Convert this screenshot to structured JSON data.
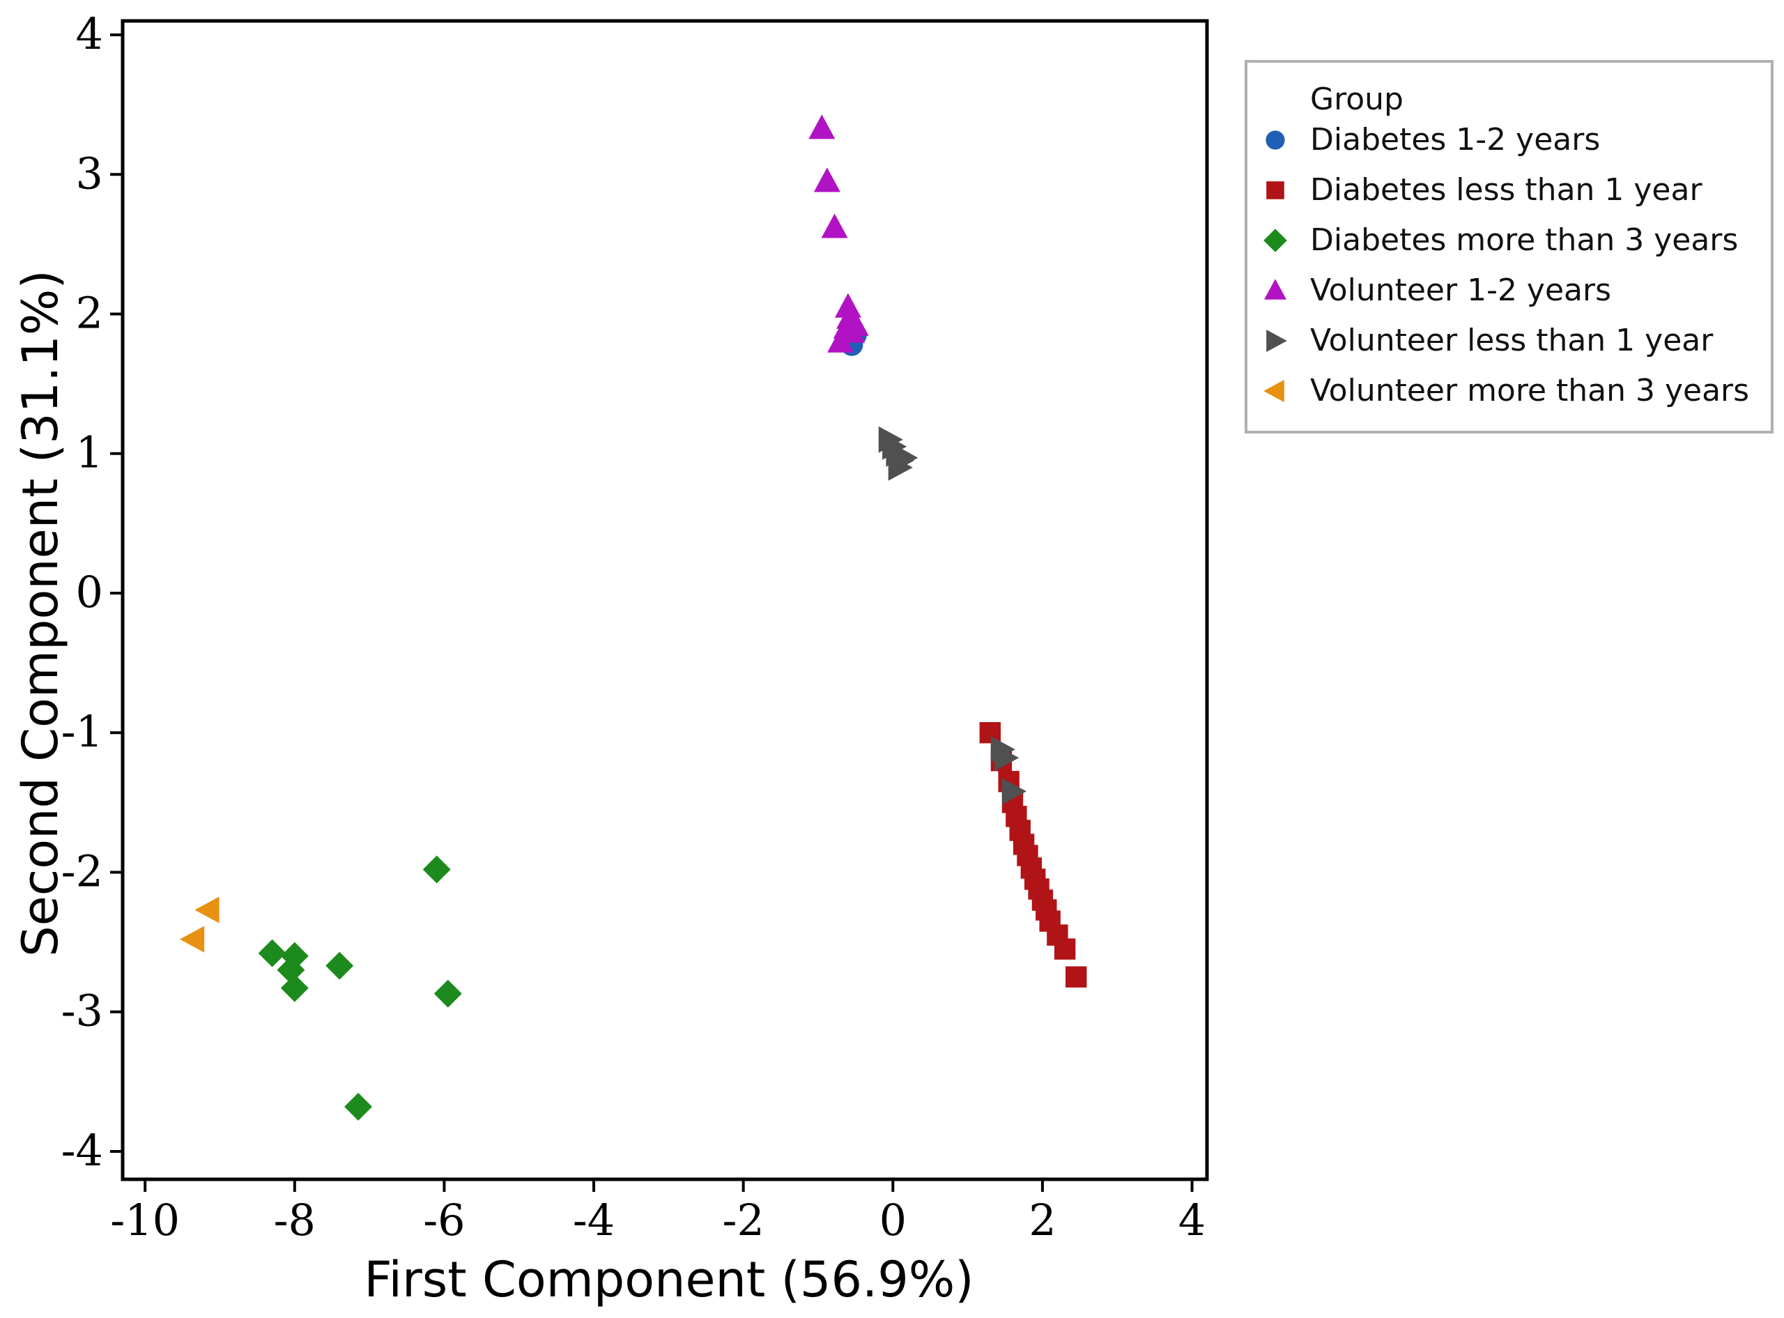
{
  "chart_data": {
    "type": "scatter",
    "title": "",
    "xlabel": "First Component (56.9%)",
    "ylabel": "Second Component (31.1%)",
    "xlim": [
      -10.3,
      4.2
    ],
    "ylim": [
      -4.2,
      4.1
    ],
    "x_ticks": [
      -10,
      -8,
      -6,
      -4,
      -2,
      0,
      2,
      4
    ],
    "y_ticks": [
      4,
      3,
      2,
      1,
      0,
      -1,
      -2,
      -3,
      -4
    ],
    "legend": {
      "title": "Group",
      "position": "right-top"
    },
    "series": [
      {
        "name": "Diabetes 1-2 years",
        "marker": "circle",
        "color": "#1f5fb5",
        "points": [
          [
            -0.55,
            1.78
          ],
          [
            -0.5,
            1.85
          ],
          [
            -0.6,
            1.82
          ]
        ]
      },
      {
        "name": "Diabetes less than 1 year",
        "marker": "square",
        "color": "#b01416",
        "points": [
          [
            1.3,
            -1.0
          ],
          [
            1.45,
            -1.2
          ],
          [
            1.55,
            -1.35
          ],
          [
            1.6,
            -1.5
          ],
          [
            1.65,
            -1.6
          ],
          [
            1.7,
            -1.7
          ],
          [
            1.75,
            -1.8
          ],
          [
            1.8,
            -1.88
          ],
          [
            1.85,
            -1.97
          ],
          [
            1.9,
            -2.05
          ],
          [
            1.95,
            -2.12
          ],
          [
            2.0,
            -2.2
          ],
          [
            2.05,
            -2.27
          ],
          [
            2.1,
            -2.35
          ],
          [
            2.2,
            -2.45
          ],
          [
            2.3,
            -2.55
          ],
          [
            2.45,
            -2.75
          ]
        ]
      },
      {
        "name": "Diabetes more than 3 years",
        "marker": "diamond",
        "color": "#1c8a1c",
        "points": [
          [
            -6.1,
            -1.98
          ],
          [
            -8.3,
            -2.58
          ],
          [
            -8.0,
            -2.6
          ],
          [
            -8.05,
            -2.7
          ],
          [
            -7.4,
            -2.67
          ],
          [
            -8.0,
            -2.83
          ],
          [
            -5.95,
            -2.87
          ],
          [
            -7.15,
            -3.68
          ]
        ]
      },
      {
        "name": "Volunteer 1-2 years",
        "marker": "triangle-up",
        "color": "#b112c4",
        "points": [
          [
            -0.95,
            3.33
          ],
          [
            -0.88,
            2.95
          ],
          [
            -0.78,
            2.62
          ],
          [
            -0.6,
            2.05
          ],
          [
            -0.58,
            1.97
          ],
          [
            -0.62,
            1.9
          ],
          [
            -0.55,
            1.87
          ],
          [
            -0.7,
            1.8
          ],
          [
            -0.5,
            1.92
          ]
        ]
      },
      {
        "name": "Volunteer less than 1 year",
        "marker": "triangle-right",
        "color": "#505050",
        "points": [
          [
            -0.05,
            1.1
          ],
          [
            0.0,
            1.05
          ],
          [
            0.05,
            1.0
          ],
          [
            0.1,
            0.95
          ],
          [
            0.08,
            0.9
          ],
          [
            0.15,
            0.97
          ],
          [
            1.45,
            -1.12
          ],
          [
            1.5,
            -1.18
          ],
          [
            1.6,
            -1.42
          ]
        ]
      },
      {
        "name": "Volunteer more than 3 years",
        "marker": "triangle-left",
        "color": "#e8900f",
        "points": [
          [
            -9.15,
            -2.27
          ],
          [
            -9.35,
            -2.48
          ]
        ]
      }
    ]
  }
}
